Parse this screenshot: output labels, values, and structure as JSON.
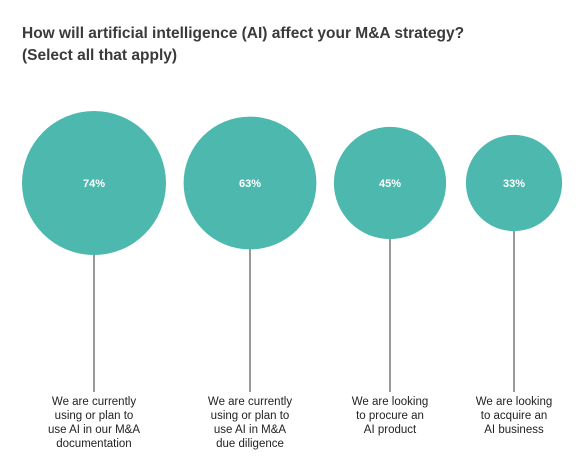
{
  "colors": {
    "bubble": "#4db8ad",
    "stem": "#333333",
    "title": "#3a3a3a"
  },
  "chart_data": {
    "type": "bubble",
    "title_lines": [
      "How will artificial intelligence (AI) affect your M&A strategy?",
      "(Select all that apply)"
    ],
    "unit": "%",
    "series": [
      {
        "value": 74,
        "label": "74%",
        "category_lines": [
          "We are currently",
          "using or plan to",
          "use AI in our M&A",
          "documentation"
        ]
      },
      {
        "value": 63,
        "label": "63%",
        "category_lines": [
          "We are currently",
          "using or plan to",
          "use AI in M&A",
          "due diligence"
        ]
      },
      {
        "value": 45,
        "label": "45%",
        "category_lines": [
          "We are looking",
          "to procure an",
          "AI product"
        ]
      },
      {
        "value": 33,
        "label": "33%",
        "category_lines": [
          "We are looking",
          "to acquire an",
          "AI business"
        ]
      }
    ]
  }
}
